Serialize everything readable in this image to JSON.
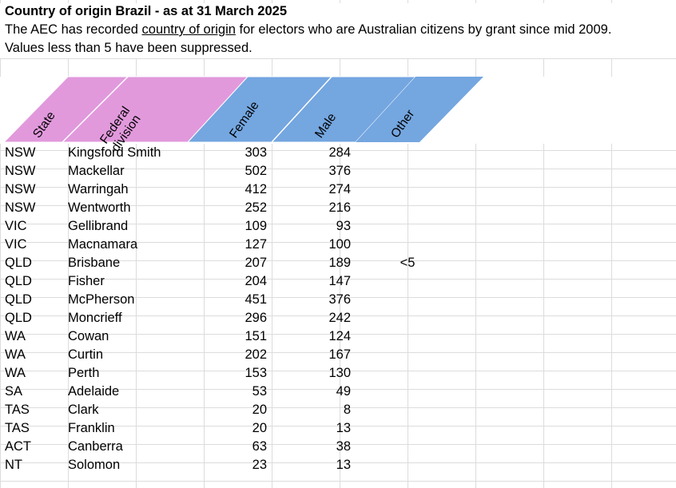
{
  "sheet": {
    "title": "Country of origin Brazil - as at 31 March 2025",
    "description": {
      "before": "The AEC has recorded ",
      "link": "country of origin",
      "after": " for electors who are Australian citizens by grant since mid 2009."
    },
    "note": "Values less than 5 have been suppressed.",
    "headers": [
      "State",
      "Federal division",
      "Female",
      "Male",
      "Other"
    ],
    "rows": [
      [
        "NSW",
        "Kingsford Smith",
        303,
        284
      ],
      [
        "NSW",
        "Mackellar",
        502,
        376
      ],
      [
        "NSW",
        "Warringah",
        412,
        274
      ],
      [
        "NSW",
        "Wentworth",
        252,
        216
      ],
      [
        "VIC",
        "Gellibrand",
        109,
        93
      ],
      [
        "VIC",
        "Macnamara",
        127,
        100
      ],
      [
        "QLD",
        "Brisbane",
        207,
        189,
        "<5"
      ],
      [
        "QLD",
        "Fisher",
        204,
        147
      ],
      [
        "QLD",
        "McPherson",
        451,
        376
      ],
      [
        "QLD",
        "Moncrieff",
        296,
        242
      ],
      [
        "WA",
        "Cowan",
        151,
        124
      ],
      [
        "WA",
        "Curtin",
        202,
        167
      ],
      [
        "WA",
        "Perth",
        153,
        130
      ],
      [
        "SA",
        "Adelaide",
        53,
        49
      ],
      [
        "TAS",
        "Clark",
        20,
        8
      ],
      [
        "TAS",
        "Franklin",
        20,
        13
      ],
      [
        "ACT",
        "Canberra",
        63,
        38
      ],
      [
        "NT",
        "Solomon",
        23,
        13
      ]
    ]
  }
}
